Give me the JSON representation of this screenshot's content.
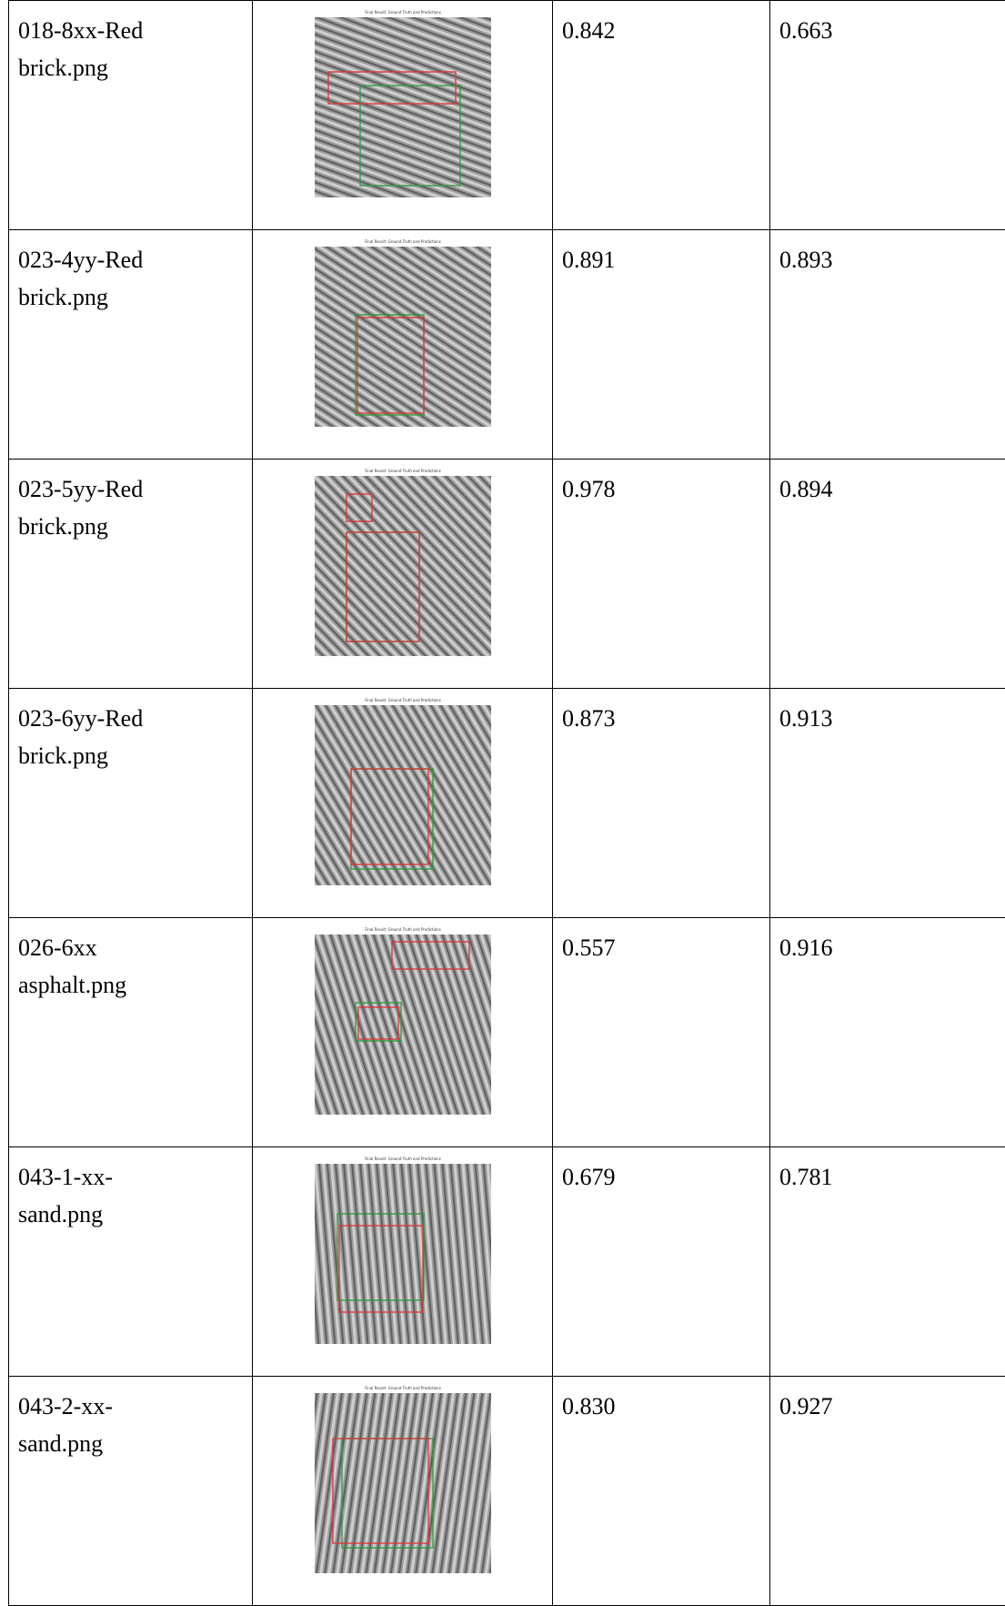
{
  "table": {
    "rows": [
      {
        "file": "018-8xx-Red brick.png",
        "image_title": "Final Result: Ground Truth and Predictions",
        "score_a": "0.842",
        "score_b": "0.663"
      },
      {
        "file": "023-4yy-Red brick.png",
        "image_title": "Final Result: Ground Truth and Predictions",
        "score_a": "0.891",
        "score_b": "0.893"
      },
      {
        "file": "023-5yy-Red brick.png",
        "image_title": "Final Result: Ground Truth and Predictions",
        "score_a": "0.978",
        "score_b": "0.894"
      },
      {
        "file": "023-6yy-Red brick.png",
        "image_title": "Final Result: Ground Truth and Predictions",
        "score_a": "0.873",
        "score_b": "0.913"
      },
      {
        "file": "026-6xx asphalt.png",
        "image_title": "Final Result: Ground Truth and Predictions",
        "score_a": "0.557",
        "score_b": "0.916"
      },
      {
        "file": "043-1-xx-sand.png",
        "image_title": "Final Result: Ground Truth and Predictions",
        "score_a": "0.679",
        "score_b": "0.781"
      },
      {
        "file": "043-2-xx-sand.png",
        "image_title": "Final Result: Ground Truth and Predictions",
        "score_a": "0.830",
        "score_b": "0.927"
      }
    ]
  }
}
